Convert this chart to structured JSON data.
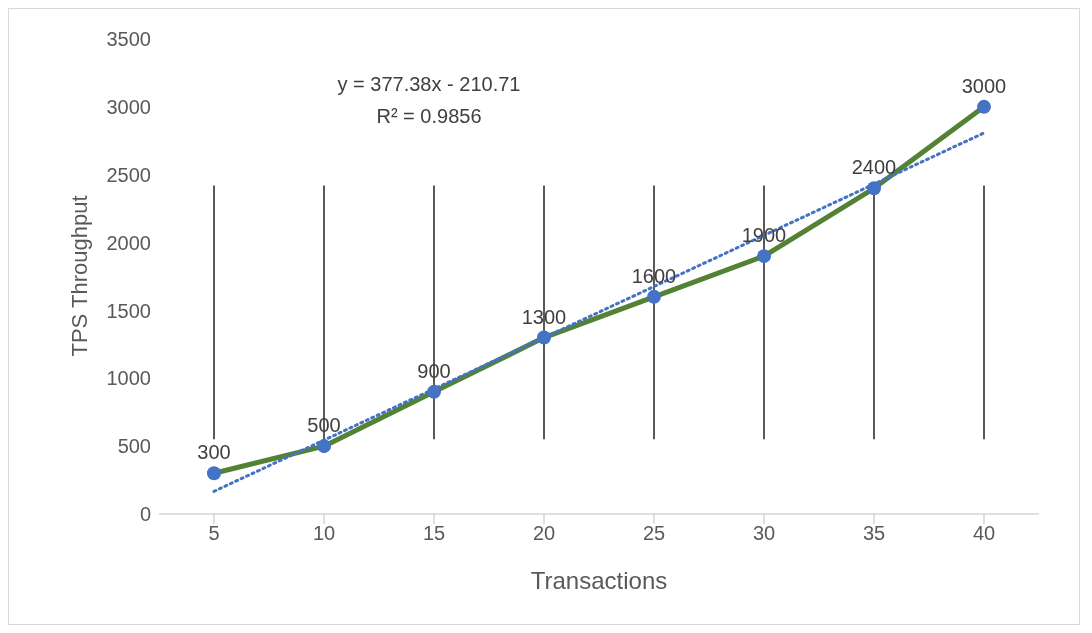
{
  "chart_data": {
    "type": "line",
    "xlabel": "Transactions",
    "ylabel": "TPS Throughput",
    "categories": [
      "5",
      "10",
      "15",
      "20",
      "25",
      "30",
      "35",
      "40"
    ],
    "ylim": [
      0,
      3500
    ],
    "yticks": [
      0,
      500,
      1000,
      1500,
      2000,
      2500,
      3000,
      3500
    ],
    "grid": false,
    "legend": false,
    "marker": "circle",
    "annotations": [
      "y = 377.38x - 210.71",
      "R² = 0.9856"
    ],
    "series": [
      {
        "color": "#548235",
        "value_labels": [
          "300",
          "500",
          "900",
          "1300",
          "1600",
          "1900",
          "2400",
          "3000"
        ],
        "colors": [
          "#4472c4",
          "#4472c4",
          "#4472c4",
          "#4472c4",
          "#4472c4",
          "#4472c4",
          "#4472c4",
          "#4472c4"
        ],
        "values": [
          300,
          500,
          900,
          1300,
          1600,
          1900,
          2400,
          3000
        ],
        "errors": [
          [
            550,
            2420
          ],
          [
            550,
            2420
          ],
          [
            550,
            2420
          ],
          [
            550,
            2420
          ],
          [
            550,
            2420
          ],
          [
            550,
            2420
          ],
          [
            550,
            2420
          ],
          [
            550,
            2420
          ]
        ]
      },
      {
        "type": "line",
        "color": "#4472c4",
        "line_style": "dotted",
        "marker": "none",
        "values": [
          167,
          null,
          null,
          null,
          null,
          null,
          null,
          2808
        ]
      }
    ]
  }
}
